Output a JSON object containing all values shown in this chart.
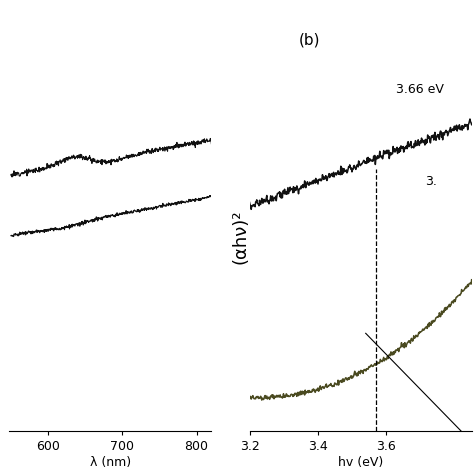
{
  "bg_color": "#ffffff",
  "panel_b_label": "(b)",
  "panel_b_ylabel": "(αhν)²",
  "panel_b_xlim": [
    3.2,
    3.85
  ],
  "panel_b_ylim": [
    0.0,
    1.0
  ],
  "panel_b_xticks": [
    3.2,
    3.4,
    3.6
  ],
  "annotation1_text": "3.66 eV",
  "annotation2_text": "3.",
  "line1_color": "#111111",
  "line2_color": "#4a4a20",
  "panel_a_xlim": [
    548,
    820
  ],
  "panel_a_ylim": [
    0.0,
    1.0
  ],
  "panel_a_xticks": [
    600,
    700,
    800
  ],
  "panel_a_xlabel": "λ (nm)"
}
